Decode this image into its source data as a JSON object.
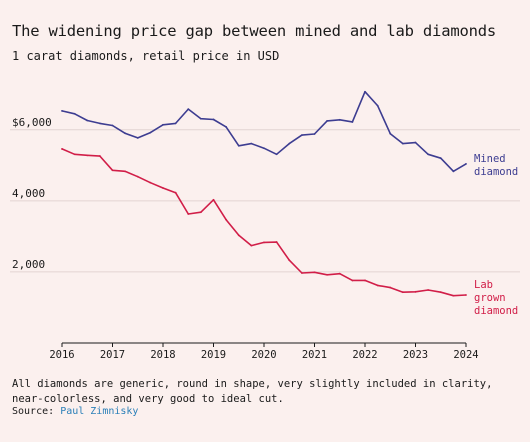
{
  "title": "The widening price gap between mined and lab diamonds",
  "subtitle": "1 carat diamonds, retail price in USD",
  "note": "All diamonds are generic, round in shape, very slightly included in clarity, near-colorless, and very good to ideal cut.",
  "source": {
    "label": "Source:",
    "name": "Paul Zimnisky"
  },
  "chart_data": {
    "type": "line",
    "xlim": [
      2016,
      2024
    ],
    "ylim": [
      0,
      7400
    ],
    "grid": true,
    "y_ticks": [
      2000,
      4000,
      6000
    ],
    "y_tick_labels": [
      "2,000",
      "4,000",
      "$6,000"
    ],
    "x_ticks": [
      2016,
      2017,
      2018,
      2019,
      2020,
      2021,
      2022,
      2023,
      2024
    ],
    "x_tick_labels": [
      "2016",
      "2017",
      "2018",
      "2019",
      "2020",
      "2021",
      "2022",
      "2023",
      "2024"
    ],
    "series": [
      {
        "name": "Mined diamond",
        "label_lines": [
          "Mined",
          "diamond"
        ],
        "color": "#3d3d91",
        "x": [
          2016,
          2016.25,
          2016.5,
          2016.75,
          2017,
          2017.25,
          2017.5,
          2017.75,
          2018,
          2018.25,
          2018.5,
          2018.75,
          2019,
          2019.25,
          2019.5,
          2019.75,
          2020,
          2020.25,
          2020.5,
          2020.75,
          2021,
          2021.25,
          2021.5,
          2021.75,
          2022,
          2022.25,
          2022.5,
          2022.75,
          2023,
          2023.25,
          2023.5,
          2023.75,
          2024
        ],
        "y": [
          6530,
          6450,
          6260,
          6180,
          6120,
          5900,
          5770,
          5920,
          6140,
          6180,
          6580,
          6310,
          6290,
          6080,
          5550,
          5610,
          5480,
          5310,
          5610,
          5850,
          5880,
          6250,
          6280,
          6220,
          7070,
          6680,
          5890,
          5610,
          5640,
          5310,
          5200,
          4830,
          5040
        ]
      },
      {
        "name": "Lab grown diamond",
        "label_lines": [
          "Lab",
          "grown",
          "diamond"
        ],
        "color": "#d11e48",
        "x": [
          2016,
          2016.25,
          2016.5,
          2016.75,
          2017,
          2017.25,
          2017.5,
          2017.75,
          2018,
          2018.25,
          2018.5,
          2018.75,
          2019,
          2019.25,
          2019.5,
          2019.75,
          2020,
          2020.25,
          2020.5,
          2020.75,
          2021,
          2021.25,
          2021.5,
          2021.75,
          2022,
          2022.25,
          2022.5,
          2022.75,
          2023,
          2023.25,
          2023.5,
          2023.75,
          2024
        ],
        "y": [
          5460,
          5310,
          5280,
          5260,
          4860,
          4830,
          4680,
          4510,
          4360,
          4230,
          3630,
          3680,
          4030,
          3470,
          3030,
          2740,
          2830,
          2840,
          2330,
          1970,
          1990,
          1920,
          1950,
          1760,
          1760,
          1620,
          1560,
          1430,
          1440,
          1490,
          1430,
          1330,
          1350
        ]
      }
    ]
  }
}
